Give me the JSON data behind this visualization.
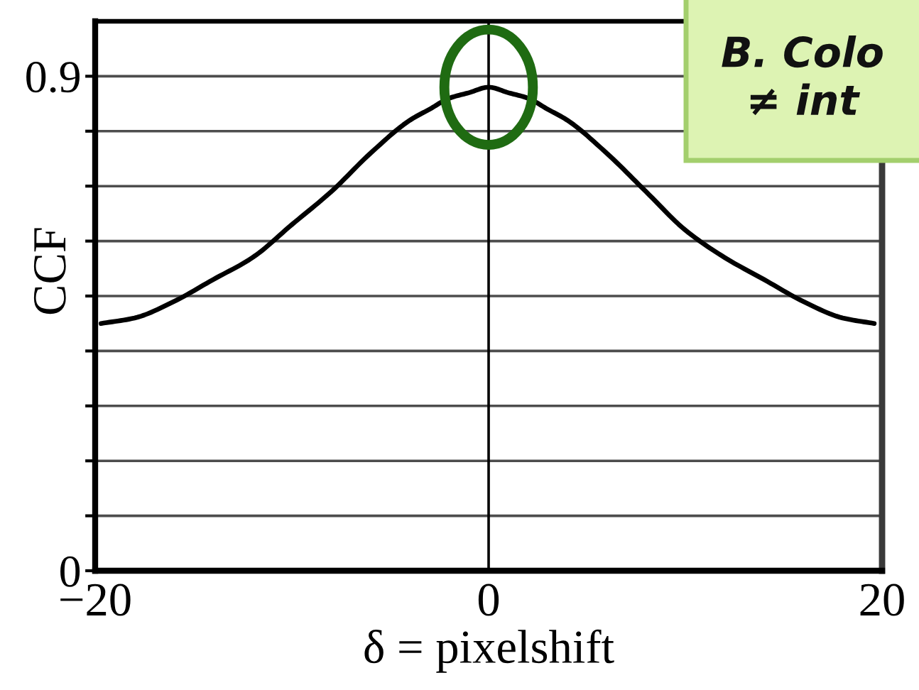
{
  "chart_data": {
    "type": "line",
    "xlabel": "δ = pixelshift",
    "ylabel": "CCF",
    "x": [
      -19.7,
      -18,
      -16,
      -14,
      -12,
      -10,
      -8,
      -6,
      -4,
      -3,
      -2,
      -1,
      0,
      1,
      2,
      3,
      4,
      6,
      8,
      10,
      12,
      14,
      16,
      18,
      19.6
    ],
    "series": [
      {
        "color": "#000000",
        "values": [
          0.45,
          0.46,
          0.49,
          0.53,
          0.57,
          0.63,
          0.69,
          0.76,
          0.82,
          0.84,
          0.86,
          0.87,
          0.88,
          0.87,
          0.86,
          0.84,
          0.82,
          0.76,
          0.69,
          0.62,
          0.57,
          0.53,
          0.49,
          0.46,
          0.45
        ]
      }
    ],
    "xlim": [
      -20,
      20
    ],
    "xticks": [
      {
        "value": -20,
        "label": "−20"
      },
      0,
      20
    ],
    "ylim": [
      0,
      1
    ],
    "yticks": [
      0,
      {
        "value": 0.1,
        "label": null
      },
      {
        "value": 0.2,
        "label": null
      },
      {
        "value": 0.3,
        "label": null
      },
      {
        "value": 0.4,
        "label": null
      },
      {
        "value": 0.5,
        "label": null
      },
      {
        "value": 0.6,
        "label": null
      },
      {
        "value": 0.7,
        "label": null
      },
      {
        "value": 0.8,
        "label": null
      },
      0.9
    ],
    "grid": "y",
    "marker": "none",
    "line_style": "solid",
    "ref_lines": [
      {
        "axis": "x",
        "value": 0
      }
    ],
    "annotations": [
      "B. Colo\n≠ int"
    ]
  }
}
